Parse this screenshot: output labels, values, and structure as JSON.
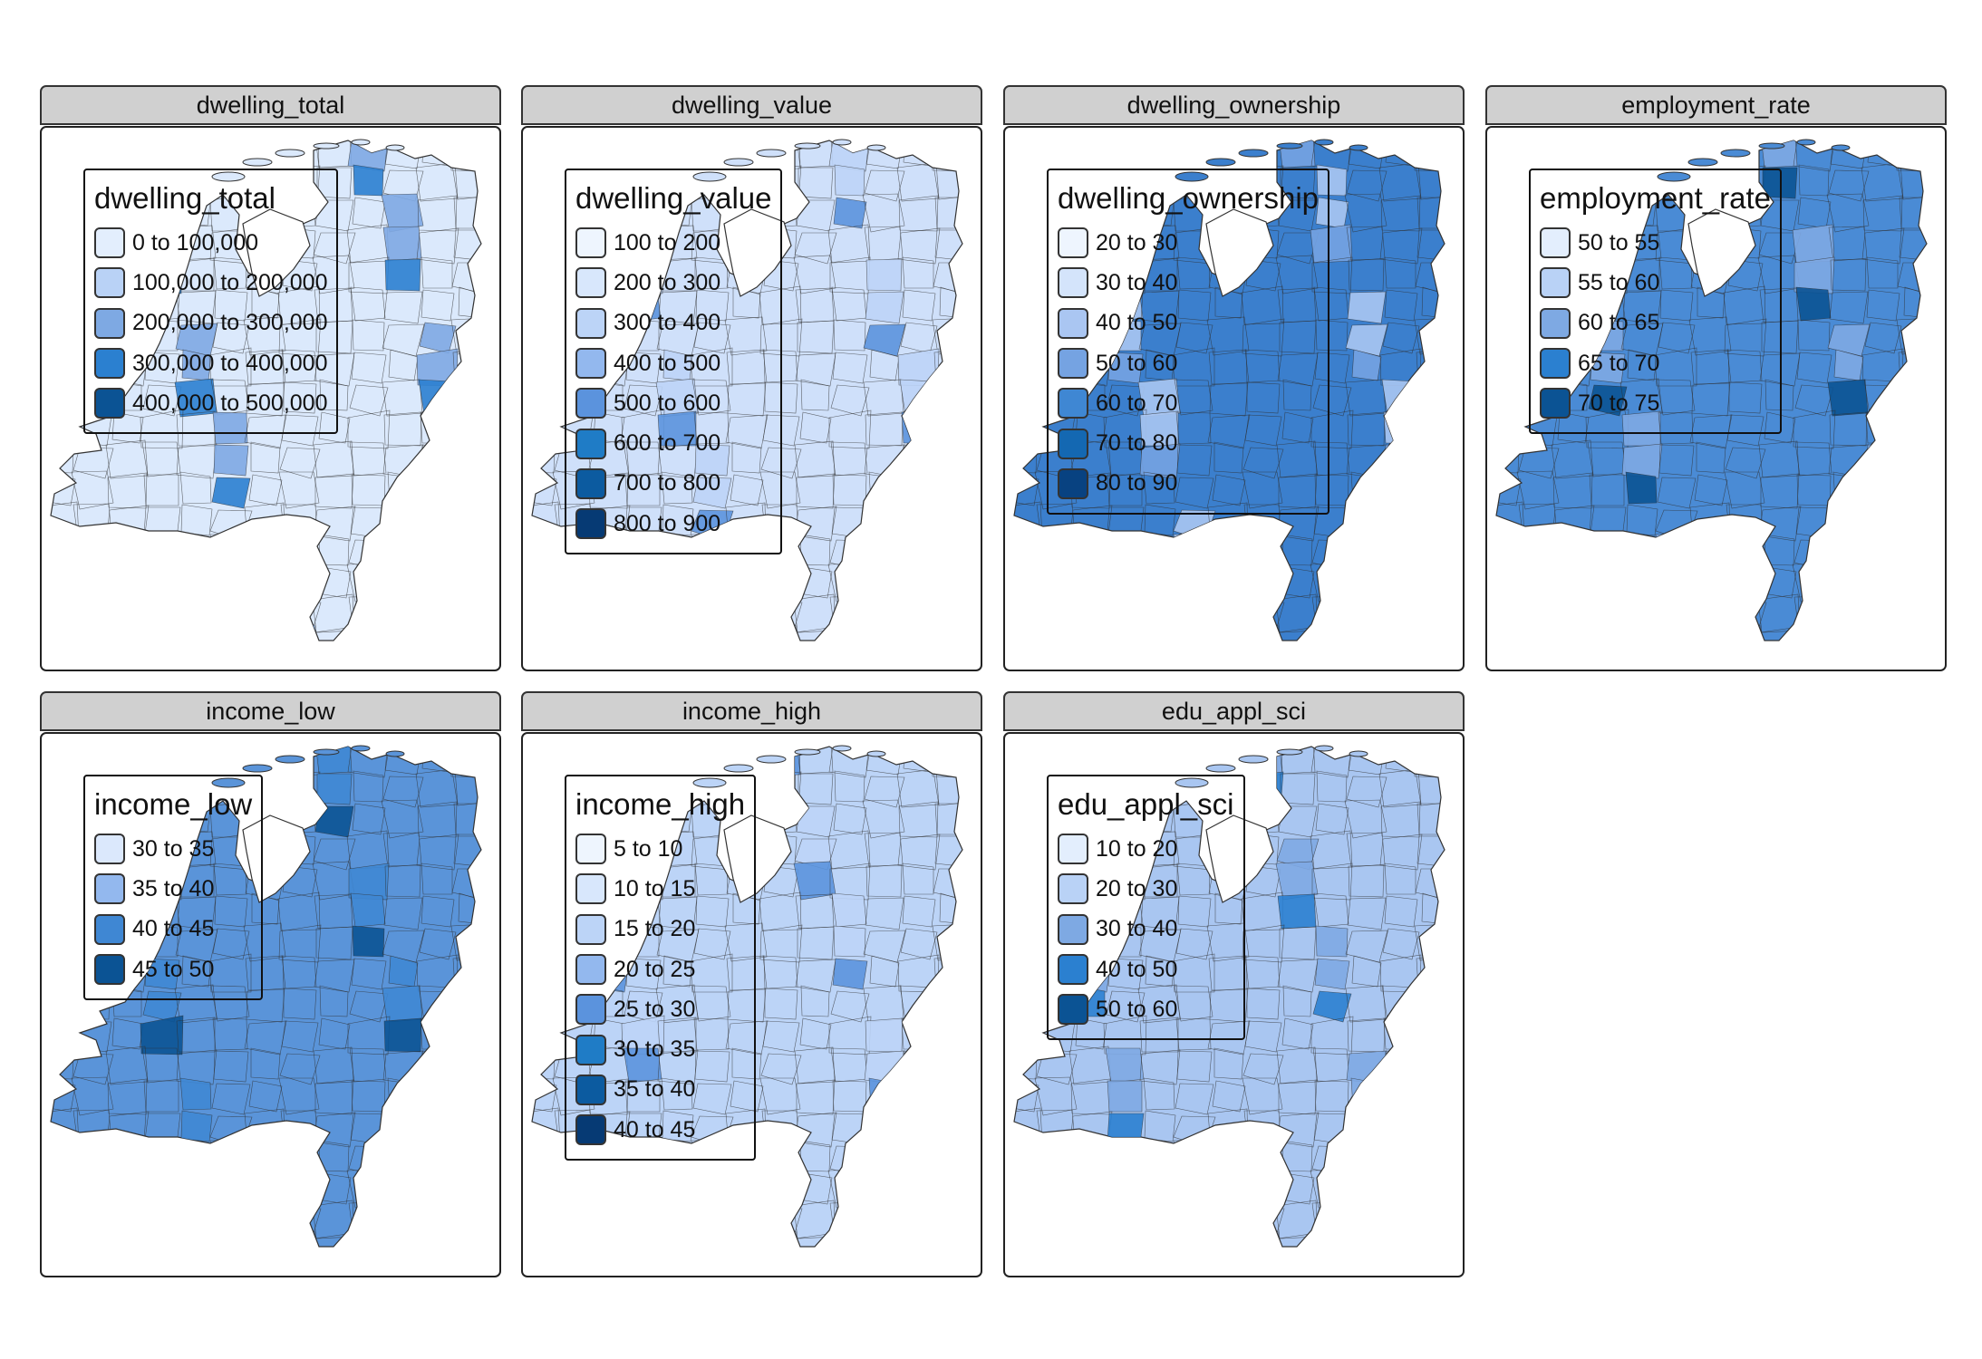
{
  "panels": [
    {
      "header": "dwelling_total",
      "legend_title": "dwelling_total",
      "map_fill": "#dbe9fc",
      "items": [
        {
          "label": "0 to 100,000",
          "color": "#e3eefd"
        },
        {
          "label": "100,000 to 200,000",
          "color": "#b9d2f6"
        },
        {
          "label": "200,000 to 300,000",
          "color": "#7ea9e3"
        },
        {
          "label": "300,000 to 400,000",
          "color": "#2b80d0"
        },
        {
          "label": "400,000 to 500,000",
          "color": "#0b5394"
        }
      ]
    },
    {
      "header": "dwelling_value",
      "legend_title": "dwelling_value",
      "map_fill": "#cfe0fa",
      "items": [
        {
          "label": "100 to 200",
          "color": "#eef5fe"
        },
        {
          "label": "200 to 300",
          "color": "#d8e7fc"
        },
        {
          "label": "300 to 400",
          "color": "#bcd4f7"
        },
        {
          "label": "400 to 500",
          "color": "#93b8ee"
        },
        {
          "label": "500 to 600",
          "color": "#5b93dd"
        },
        {
          "label": "600 to 700",
          "color": "#1f7cc6"
        },
        {
          "label": "700 to 800",
          "color": "#0c5ba0"
        },
        {
          "label": "800 to 900",
          "color": "#063a74"
        }
      ]
    },
    {
      "header": "dwelling_ownership",
      "legend_title": "dwelling_ownership",
      "map_fill": "#3b7fcd",
      "items": [
        {
          "label": "20 to 30",
          "color": "#eef5fe"
        },
        {
          "label": "30 to 40",
          "color": "#d4e4fb"
        },
        {
          "label": "40 to 50",
          "color": "#aac6f2"
        },
        {
          "label": "50 to 60",
          "color": "#75a3e2"
        },
        {
          "label": "60 to 70",
          "color": "#3f87d3"
        },
        {
          "label": "70 to 80",
          "color": "#1468b2"
        },
        {
          "label": "80 to 90",
          "color": "#084281"
        }
      ]
    },
    {
      "header": "employment_rate",
      "legend_title": "employment_rate",
      "map_fill": "#4a8bd5",
      "items": [
        {
          "label": "50 to 55",
          "color": "#e3eefd"
        },
        {
          "label": "55 to 60",
          "color": "#b9d2f6"
        },
        {
          "label": "60 to 65",
          "color": "#7ea9e3"
        },
        {
          "label": "65 to 70",
          "color": "#2b80d0"
        },
        {
          "label": "70 to 75",
          "color": "#0b5394"
        }
      ]
    },
    {
      "header": "income_low",
      "legend_title": "income_low",
      "map_fill": "#5a94d9",
      "items": [
        {
          "label": "30 to 35",
          "color": "#dbe8fc"
        },
        {
          "label": "35 to 40",
          "color": "#93b8ee"
        },
        {
          "label": "40 to 45",
          "color": "#3f87d3"
        },
        {
          "label": "45 to 50",
          "color": "#0b5394"
        }
      ]
    },
    {
      "header": "income_high",
      "legend_title": "income_high",
      "map_fill": "#bcd4f7",
      "items": [
        {
          "label": "5 to 10",
          "color": "#eef5fe"
        },
        {
          "label": "10 to 15",
          "color": "#d8e7fc"
        },
        {
          "label": "15 to 20",
          "color": "#bcd4f7"
        },
        {
          "label": "20 to 25",
          "color": "#93b8ee"
        },
        {
          "label": "25 to 30",
          "color": "#5b93dd"
        },
        {
          "label": "30 to 35",
          "color": "#1f7cc6"
        },
        {
          "label": "35 to 40",
          "color": "#0c5ba0"
        },
        {
          "label": "40 to 45",
          "color": "#063a74"
        }
      ]
    },
    {
      "header": "edu_appl_sci",
      "legend_title": "edu_appl_sci",
      "map_fill": "#a9c6f1",
      "items": [
        {
          "label": "10 to 20",
          "color": "#e3eefd"
        },
        {
          "label": "20 to 30",
          "color": "#b9d2f6"
        },
        {
          "label": "30 to 40",
          "color": "#7ea9e3"
        },
        {
          "label": "40 to 50",
          "color": "#2b80d0"
        },
        {
          "label": "50 to 60",
          "color": "#0b5394"
        }
      ]
    }
  ]
}
